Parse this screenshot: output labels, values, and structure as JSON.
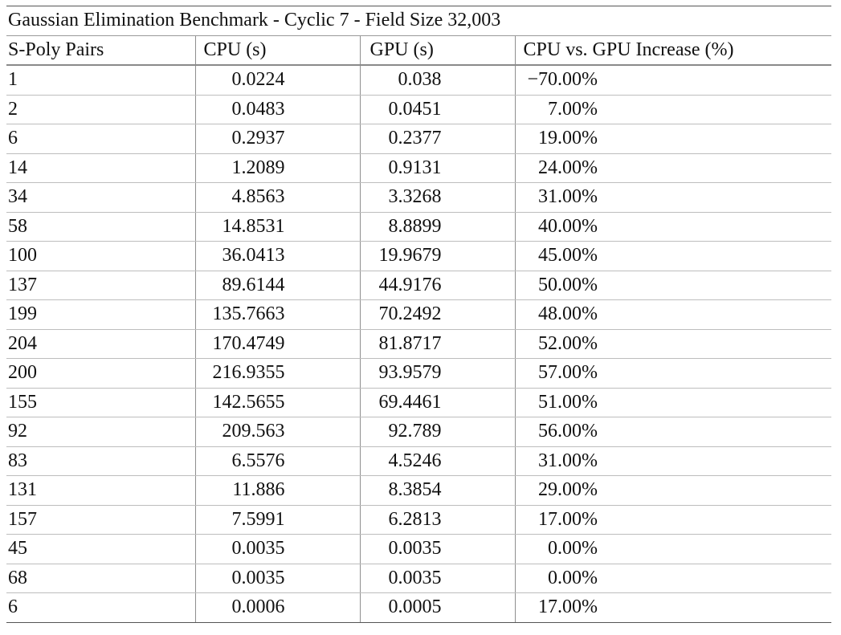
{
  "table": {
    "title": "Gaussian Elimination Benchmark - Cyclic 7 - Field Size 32,003",
    "columns": [
      "S-Poly Pairs",
      "CPU (s)",
      "GPU (s)",
      "CPU vs. GPU Increase (%)"
    ],
    "rows": [
      {
        "pairs": "1",
        "cpu": "0.0224",
        "gpu": "0.038",
        "increase": "−70.00%"
      },
      {
        "pairs": "2",
        "cpu": "0.0483",
        "gpu": "0.0451",
        "increase": "7.00%"
      },
      {
        "pairs": "6",
        "cpu": "0.2937",
        "gpu": "0.2377",
        "increase": "19.00%"
      },
      {
        "pairs": "14",
        "cpu": "1.2089",
        "gpu": "0.9131",
        "increase": "24.00%"
      },
      {
        "pairs": "34",
        "cpu": "4.8563",
        "gpu": "3.3268",
        "increase": "31.00%"
      },
      {
        "pairs": "58",
        "cpu": "14.8531",
        "gpu": "8.8899",
        "increase": "40.00%"
      },
      {
        "pairs": "100",
        "cpu": "36.0413",
        "gpu": "19.9679",
        "increase": "45.00%"
      },
      {
        "pairs": "137",
        "cpu": "89.6144",
        "gpu": "44.9176",
        "increase": "50.00%"
      },
      {
        "pairs": "199",
        "cpu": "135.7663",
        "gpu": "70.2492",
        "increase": "48.00%"
      },
      {
        "pairs": "204",
        "cpu": "170.4749",
        "gpu": "81.8717",
        "increase": "52.00%"
      },
      {
        "pairs": "200",
        "cpu": "216.9355",
        "gpu": "93.9579",
        "increase": "57.00%"
      },
      {
        "pairs": "155",
        "cpu": "142.5655",
        "gpu": "69.4461",
        "increase": "51.00%"
      },
      {
        "pairs": "92",
        "cpu": "209.563",
        "gpu": "92.789",
        "increase": "56.00%"
      },
      {
        "pairs": "83",
        "cpu": "6.5576",
        "gpu": "4.5246",
        "increase": "31.00%"
      },
      {
        "pairs": "131",
        "cpu": "11.886",
        "gpu": "8.3854",
        "increase": "29.00%"
      },
      {
        "pairs": "157",
        "cpu": "7.5991",
        "gpu": "6.2813",
        "increase": "17.00%"
      },
      {
        "pairs": "45",
        "cpu": "0.0035",
        "gpu": "0.0035",
        "increase": "0.00%"
      },
      {
        "pairs": "68",
        "cpu": "0.0035",
        "gpu": "0.0035",
        "increase": "0.00%"
      },
      {
        "pairs": "6",
        "cpu": "0.0006",
        "gpu": "0.0005",
        "increase": "17.00%"
      }
    ]
  }
}
